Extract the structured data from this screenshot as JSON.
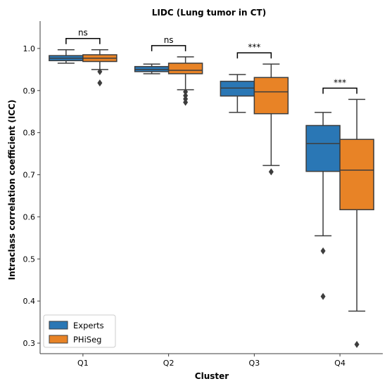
{
  "chart_data": {
    "type": "box",
    "title": "LIDC (Lung tumor in CT)",
    "xlabel": "Cluster",
    "ylabel": "Intraclass correlation coefficient (ICC)",
    "categories": [
      "Q1",
      "Q2",
      "Q3",
      "Q4"
    ],
    "ylim": [
      0.275,
      1.065
    ],
    "yticks": [
      "0.3",
      "0.4",
      "0.5",
      "0.6",
      "0.7",
      "0.8",
      "0.9",
      "1.0"
    ],
    "grid": false,
    "legend_position": "bottom-left",
    "series": [
      {
        "name": "Experts",
        "color": "#2a77b5",
        "boxes": [
          {
            "whislo": 0.965,
            "q1": 0.971,
            "med": 0.977,
            "q3": 0.983,
            "whishi": 0.997,
            "fliers": []
          },
          {
            "whislo": 0.94,
            "q1": 0.945,
            "med": 0.95,
            "q3": 0.957,
            "whishi": 0.963,
            "fliers": []
          },
          {
            "whislo": 0.848,
            "q1": 0.887,
            "med": 0.906,
            "q3": 0.922,
            "whishi": 0.938,
            "fliers": []
          },
          {
            "whislo": 0.555,
            "q1": 0.708,
            "med": 0.774,
            "q3": 0.817,
            "whishi": 0.848,
            "fliers": [
              0.519,
              0.411
            ]
          }
        ]
      },
      {
        "name": "PHiSeg",
        "color": "#e88326",
        "boxes": [
          {
            "whislo": 0.95,
            "q1": 0.969,
            "med": 0.977,
            "q3": 0.985,
            "whishi": 0.997,
            "fliers": [
              0.945,
              0.918
            ]
          },
          {
            "whislo": 0.902,
            "q1": 0.94,
            "med": 0.948,
            "q3": 0.965,
            "whishi": 0.98,
            "fliers": [
              0.897,
              0.888,
              0.88,
              0.872
            ]
          },
          {
            "whislo": 0.722,
            "q1": 0.845,
            "med": 0.897,
            "q3": 0.931,
            "whishi": 0.963,
            "fliers": [
              0.707
            ]
          },
          {
            "whislo": 0.376,
            "q1": 0.617,
            "med": 0.711,
            "q3": 0.784,
            "whishi": 0.879,
            "fliers": [
              0.297
            ]
          }
        ]
      }
    ],
    "annotations": [
      {
        "category": "Q1",
        "label": "ns"
      },
      {
        "category": "Q2",
        "label": "ns"
      },
      {
        "category": "Q3",
        "label": "***"
      },
      {
        "category": "Q4",
        "label": "***"
      }
    ]
  }
}
